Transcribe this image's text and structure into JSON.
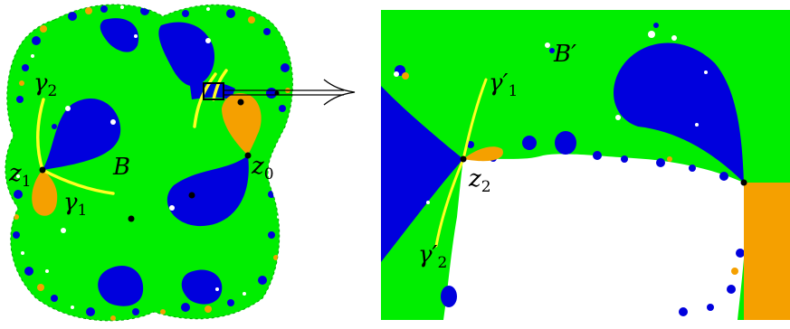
{
  "colors": {
    "basin": "#00ee00",
    "blue_component": "#0000dd",
    "orange_component": "#f5a000",
    "curve": "#ffff22",
    "outline": "#000000",
    "background": "#ffffff"
  },
  "left_panel": {
    "labels": {
      "B": "B",
      "z0": {
        "base": "z",
        "sub": "0"
      },
      "z1": {
        "base": "z",
        "sub": "1"
      },
      "gamma1": {
        "base": "γ",
        "sub": "1"
      },
      "gamma2": {
        "base": "γ",
        "sub": "2"
      }
    }
  },
  "right_panel": {
    "labels": {
      "B_prime": "B′",
      "z2": {
        "base": "z",
        "sub": "2"
      },
      "gamma1_prime": {
        "base": "γ′",
        "sub": "1"
      },
      "gamma2_prime": {
        "base": "γ′",
        "sub": "2"
      }
    }
  }
}
